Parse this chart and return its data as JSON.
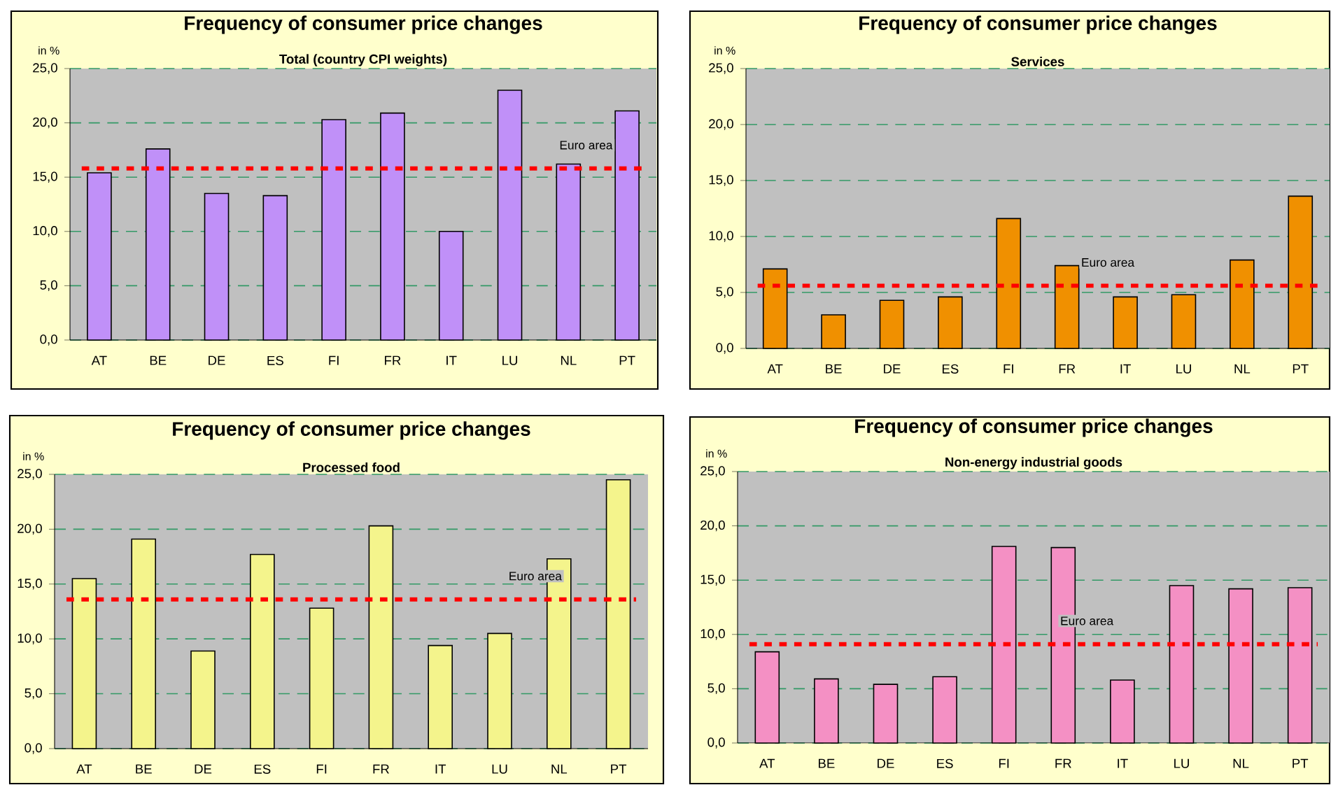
{
  "chart_data": [
    {
      "type": "bar",
      "title": "Frequency of consumer price changes",
      "subtitle": "Total (country CPI weights)",
      "ylabel": "in %",
      "categories": [
        "AT",
        "BE",
        "DE",
        "ES",
        "FI",
        "FR",
        "IT",
        "LU",
        "NL",
        "PT"
      ],
      "values": [
        15.4,
        17.6,
        13.5,
        13.3,
        20.3,
        20.9,
        10.0,
        23.0,
        16.2,
        21.1
      ],
      "color": "#c090f8",
      "ylim": [
        0,
        25
      ],
      "yticks": [
        {
          "value": 0,
          "label": "0,0"
        },
        {
          "value": 5,
          "label": "5,0"
        },
        {
          "value": 10,
          "label": "10,0"
        },
        {
          "value": 15,
          "label": "15,0"
        },
        {
          "value": 20,
          "label": "20,0"
        },
        {
          "value": 25,
          "label": "25,0"
        }
      ],
      "grid": "y",
      "ref_lines": [
        {
          "axis": "y",
          "value": 15.8,
          "label": "Euro area",
          "color": "#ff0000",
          "line_style": "dotted"
        }
      ]
    },
    {
      "type": "bar",
      "title": "Frequency of consumer price changes",
      "subtitle": "Services",
      "ylabel": "in %",
      "categories": [
        "AT",
        "BE",
        "DE",
        "ES",
        "FI",
        "FR",
        "IT",
        "LU",
        "NL",
        "PT"
      ],
      "values": [
        7.1,
        3.0,
        4.3,
        4.6,
        11.6,
        7.4,
        4.6,
        4.8,
        7.9,
        13.6
      ],
      "color": "#f09000",
      "ylim": [
        0,
        25
      ],
      "yticks": [
        {
          "value": 0,
          "label": "0,0"
        },
        {
          "value": 5,
          "label": "5,0"
        },
        {
          "value": 10,
          "label": "10,0"
        },
        {
          "value": 15,
          "label": "15,0"
        },
        {
          "value": 20,
          "label": "20,0"
        },
        {
          "value": 25,
          "label": "25,0"
        }
      ],
      "grid": "y",
      "ref_lines": [
        {
          "axis": "y",
          "value": 5.6,
          "label": "Euro area",
          "color": "#ff0000",
          "line_style": "dotted"
        }
      ]
    },
    {
      "type": "bar",
      "title": "Frequency of consumer price changes",
      "subtitle": "Processed food",
      "ylabel": "in %",
      "categories": [
        "AT",
        "BE",
        "DE",
        "ES",
        "FI",
        "FR",
        "IT",
        "LU",
        "NL",
        "PT"
      ],
      "values": [
        15.5,
        19.1,
        8.9,
        17.7,
        12.8,
        20.3,
        9.4,
        10.5,
        17.3,
        24.5
      ],
      "color": "#f4f48c",
      "ylim": [
        0,
        25
      ],
      "yticks": [
        {
          "value": 0,
          "label": "0,0"
        },
        {
          "value": 5,
          "label": "5,0"
        },
        {
          "value": 10,
          "label": "10,0"
        },
        {
          "value": 15,
          "label": "15,0"
        },
        {
          "value": 20,
          "label": "20,0"
        },
        {
          "value": 25,
          "label": "25,0"
        }
      ],
      "grid": "y",
      "ref_lines": [
        {
          "axis": "y",
          "value": 13.6,
          "label": "Euro area",
          "color": "#ff0000",
          "line_style": "dotted"
        }
      ]
    },
    {
      "type": "bar",
      "title": "Frequency of consumer price changes",
      "subtitle": "Non-energy industrial goods",
      "ylabel": "in %",
      "categories": [
        "AT",
        "BE",
        "DE",
        "ES",
        "FI",
        "FR",
        "IT",
        "LU",
        "NL",
        "PT"
      ],
      "values": [
        8.4,
        5.9,
        5.4,
        6.1,
        18.1,
        18.0,
        5.8,
        14.5,
        14.2,
        14.3
      ],
      "color": "#f490c4",
      "ylim": [
        0,
        25
      ],
      "yticks": [
        {
          "value": 0,
          "label": "0,0"
        },
        {
          "value": 5,
          "label": "5,0"
        },
        {
          "value": 10,
          "label": "10,0"
        },
        {
          "value": 15,
          "label": "15,0"
        },
        {
          "value": 20,
          "label": "20,0"
        },
        {
          "value": 25,
          "label": "25,0"
        }
      ],
      "grid": "y",
      "ref_lines": [
        {
          "axis": "y",
          "value": 9.1,
          "label": "Euro area",
          "color": "#ff0000",
          "line_style": "dotted"
        }
      ]
    }
  ]
}
